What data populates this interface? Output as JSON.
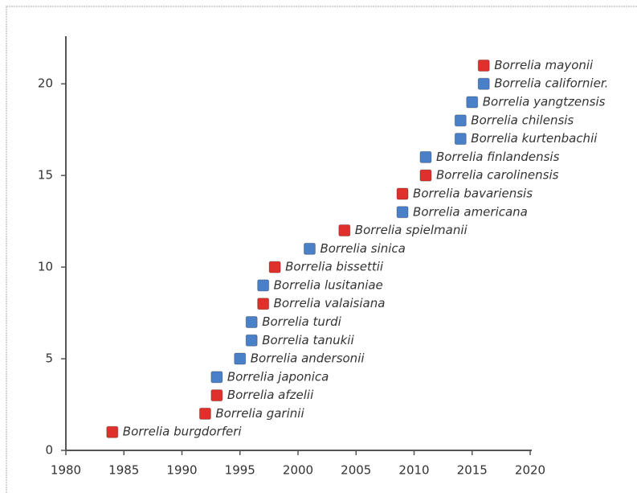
{
  "chart_data": {
    "type": "scatter",
    "xlim": [
      1980,
      2020
    ],
    "xticks": [
      1980,
      1985,
      1990,
      1995,
      2000,
      2005,
      2010,
      2015,
      2020
    ],
    "ylim": [
      0,
      22.6
    ],
    "yticks": [
      0,
      5,
      10,
      15,
      20
    ],
    "grid": false,
    "points": [
      {
        "label": "Borrelia burgdorferi",
        "x": 1984,
        "y": 1,
        "color": "#e0302c",
        "label_color": "#e0302c"
      },
      {
        "label": "Borrelia garinii",
        "x": 1992,
        "y": 2,
        "color": "#e0302c",
        "label_color": "#e0302c"
      },
      {
        "label": "Borrelia afzelii",
        "x": 1993,
        "y": 3,
        "color": "#e0302c",
        "label_color": "#e0302c"
      },
      {
        "label": "Borrelia japonica",
        "x": 1993,
        "y": 4,
        "color": "#4a80c8",
        "label_color": "#222222"
      },
      {
        "label": "Borrelia andersonii",
        "x": 1995,
        "y": 5,
        "color": "#4a80c8",
        "label_color": "#222222"
      },
      {
        "label": "Borrelia tanukii",
        "x": 1996,
        "y": 6,
        "color": "#4a80c8",
        "label_color": "#222222"
      },
      {
        "label": "Borrelia turdi",
        "x": 1996,
        "y": 7,
        "color": "#4a80c8",
        "label_color": "#222222"
      },
      {
        "label": "Borrelia valaisiana",
        "x": 1997,
        "y": 8,
        "color": "#e0302c",
        "label_color": "#e0302c"
      },
      {
        "label": "Borrelia lusitaniae",
        "x": 1997,
        "y": 9,
        "color": "#4a80c8",
        "label_color": "#222222"
      },
      {
        "label": "Borrelia bissettii",
        "x": 1998,
        "y": 10,
        "color": "#e0302c",
        "label_color": "#e0302c"
      },
      {
        "label": "Borrelia sinica",
        "x": 2001,
        "y": 11,
        "color": "#4a80c8",
        "label_color": "#222222"
      },
      {
        "label": "Borrelia spielmanii",
        "x": 2004,
        "y": 12,
        "color": "#e0302c",
        "label_color": "#e0302c"
      },
      {
        "label": "Borrelia americana",
        "x": 2009,
        "y": 13,
        "color": "#4a80c8",
        "label_color": "#222222"
      },
      {
        "label": "Borrelia bavariensis",
        "x": 2009,
        "y": 14,
        "color": "#e0302c",
        "label_color": "#e0302c"
      },
      {
        "label": "Borrelia carolinensis",
        "x": 2011,
        "y": 15,
        "color": "#e0302c",
        "label_color": "#e0302c"
      },
      {
        "label": "Borrelia finlandensis",
        "x": 2011,
        "y": 16,
        "color": "#4a80c8",
        "label_color": "#222222"
      },
      {
        "label": "Borrelia kurtenbachii",
        "x": 2014,
        "y": 17,
        "color": "#4a80c8",
        "label_color": "#222222"
      },
      {
        "label": "Borrelia chilensis",
        "x": 2014,
        "y": 18,
        "color": "#4a80c8",
        "label_color": "#222222"
      },
      {
        "label": "Borrelia yangtzensis",
        "x": 2015,
        "y": 19,
        "color": "#4a80c8",
        "label_color": "#222222"
      },
      {
        "label": "Borrelia californier.",
        "x": 2016,
        "y": 20,
        "color": "#4a80c8",
        "label_color": "#222222"
      },
      {
        "label": "Borrelia mayonii",
        "x": 2016,
        "y": 21,
        "color": "#e0302c",
        "label_color": "#e0302c"
      }
    ]
  }
}
